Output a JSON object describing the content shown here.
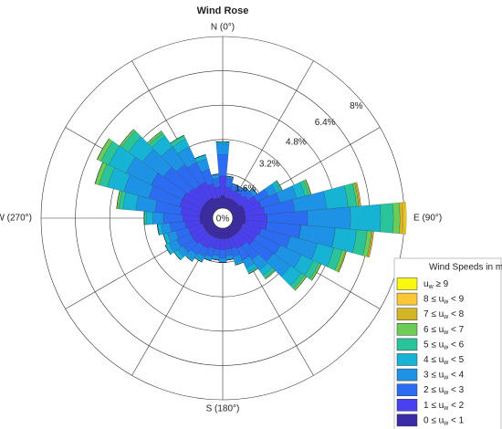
{
  "chart_data": {
    "type": "windrose",
    "title": "Wind Rose",
    "directions": [
      0,
      10,
      20,
      30,
      40,
      50,
      60,
      70,
      80,
      90,
      100,
      110,
      120,
      130,
      140,
      150,
      160,
      170,
      180,
      190,
      200,
      210,
      220,
      230,
      240,
      250,
      260,
      270,
      280,
      290,
      300,
      310,
      320,
      330,
      340,
      350
    ],
    "rlim": [
      0,
      8
    ],
    "rticks": [
      {
        "value": 0,
        "label": "0%"
      },
      {
        "value": 1.6,
        "label": "1.6%"
      },
      {
        "value": 3.2,
        "label": "3.2%"
      },
      {
        "value": 4.8,
        "label": "4.8%"
      },
      {
        "value": 6.4,
        "label": "6.4%"
      },
      {
        "value": 8,
        "label": "8%"
      }
    ],
    "thetaticks": [
      0,
      30,
      60,
      90,
      120,
      150,
      180,
      210,
      240,
      270,
      300,
      330
    ],
    "direction_labels": [
      {
        "value": 0,
        "label": "N (0°)"
      },
      {
        "value": 90,
        "label": "E (90°)"
      },
      {
        "value": 180,
        "label": "S (180°)"
      },
      {
        "value": 270,
        "label": "W (270°)"
      }
    ],
    "legend_title": "Wind Speeds in m/s",
    "legend_position": "lower right",
    "series": [
      {
        "name": "0 ≤ uw < 1",
        "color": "#3b2aa6",
        "values": [
          0.6,
          0.5,
          0.5,
          0.5,
          0.5,
          0.5,
          0.6,
          0.6,
          0.6,
          0.6,
          0.6,
          0.5,
          0.5,
          0.5,
          0.5,
          0.5,
          0.5,
          0.5,
          0.5,
          0.5,
          0.5,
          0.5,
          0.5,
          0.5,
          0.5,
          0.5,
          0.6,
          0.6,
          0.6,
          0.6,
          0.6,
          0.6,
          0.6,
          0.6,
          0.5,
          0.5
        ]
      },
      {
        "name": "1 ≤ uw < 2",
        "color": "#4a40f0",
        "values": [
          0.9,
          0.5,
          0.4,
          0.4,
          0.4,
          0.5,
          0.7,
          0.8,
          0.9,
          1.0,
          1.0,
          0.9,
          0.8,
          0.8,
          0.6,
          0.6,
          0.5,
          0.5,
          0.5,
          0.5,
          0.5,
          0.6,
          0.6,
          0.7,
          0.7,
          0.7,
          0.7,
          0.8,
          0.9,
          1.0,
          1.0,
          0.9,
          0.8,
          0.8,
          0.7,
          0.5
        ]
      },
      {
        "name": "2 ≤ uw < 3",
        "color": "#2b6cf2",
        "values": [
          1.0,
          0.4,
          0.2,
          0.2,
          0.3,
          0.3,
          0.6,
          0.9,
          1.4,
          1.9,
          1.6,
          1.4,
          1.2,
          1.1,
          0.8,
          0.6,
          0.4,
          0.3,
          0.4,
          0.3,
          0.4,
          0.4,
          0.5,
          0.6,
          0.7,
          0.6,
          0.7,
          0.9,
          1.2,
          1.5,
          1.6,
          1.4,
          1.2,
          1.0,
          0.7,
          0.4
        ]
      },
      {
        "name": "3 ≤ uw < 4",
        "color": "#1e93e6",
        "values": [
          0.5,
          0.1,
          0.1,
          0.1,
          0.1,
          0.2,
          0.4,
          0.8,
          1.5,
          2.0,
          1.6,
          1.3,
          1.1,
          1.0,
          0.6,
          0.4,
          0.3,
          0.2,
          0.2,
          0.2,
          0.2,
          0.2,
          0.3,
          0.3,
          0.4,
          0.4,
          0.4,
          0.5,
          0.9,
          1.2,
          1.3,
          1.2,
          1.0,
          0.8,
          0.5,
          0.2
        ]
      },
      {
        "name": "4 ≤ uw < 5",
        "color": "#17b3d4",
        "values": [
          0.1,
          0,
          0,
          0,
          0,
          0,
          0.2,
          0.4,
          1.0,
          1.4,
          1.0,
          0.8,
          0.6,
          0.6,
          0.3,
          0.2,
          0.1,
          0,
          0,
          0,
          0,
          0.1,
          0.1,
          0.2,
          0.2,
          0.2,
          0.2,
          0.3,
          0.6,
          0.8,
          0.9,
          0.8,
          0.6,
          0.4,
          0.2,
          0
        ]
      },
      {
        "name": "5 ≤ uw < 6",
        "color": "#2bc49a",
        "values": [
          0,
          0,
          0,
          0,
          0,
          0,
          0.1,
          0.2,
          0.4,
          0.6,
          0.5,
          0.4,
          0.3,
          0.2,
          0.15,
          0.1,
          0,
          0,
          0,
          0,
          0,
          0,
          0,
          0,
          0,
          0,
          0,
          0.1,
          0.2,
          0.4,
          0.4,
          0.4,
          0.2,
          0.2,
          0,
          0
        ]
      },
      {
        "name": "6 ≤ uw < 7",
        "color": "#6dcc55",
        "values": [
          0,
          0,
          0,
          0,
          0,
          0,
          0,
          0.1,
          0.1,
          0.3,
          0.2,
          0.15,
          0.1,
          0.1,
          0.05,
          0,
          0,
          0,
          0,
          0,
          0,
          0,
          0,
          0,
          0,
          0,
          0,
          0,
          0.1,
          0.2,
          0.2,
          0.1,
          0.1,
          0,
          0,
          0
        ]
      },
      {
        "name": "7 ≤ uw < 8",
        "color": "#d4b526",
        "values": [
          0,
          0,
          0,
          0,
          0,
          0,
          0,
          0,
          0.05,
          0.15,
          0.05,
          0.05,
          0,
          0,
          0,
          0,
          0,
          0,
          0,
          0,
          0,
          0,
          0,
          0,
          0,
          0,
          0,
          0,
          0,
          0,
          0,
          0,
          0,
          0,
          0,
          0
        ]
      },
      {
        "name": "8 ≤ uw < 9",
        "color": "#fcc736",
        "values": [
          0,
          0,
          0,
          0,
          0,
          0,
          0,
          0,
          0.05,
          0.1,
          0.05,
          0,
          0,
          0,
          0,
          0,
          0,
          0,
          0,
          0,
          0,
          0,
          0,
          0,
          0,
          0,
          0,
          0,
          0,
          0,
          0,
          0,
          0,
          0,
          0,
          0
        ]
      },
      {
        "name": "uw ≥ 9",
        "color": "#f9f90f",
        "values": [
          0,
          0,
          0,
          0,
          0,
          0,
          0,
          0,
          0,
          0.05,
          0,
          0,
          0,
          0,
          0,
          0,
          0,
          0,
          0,
          0,
          0,
          0,
          0,
          0,
          0,
          0,
          0,
          0,
          0,
          0,
          0,
          0,
          0,
          0,
          0,
          0
        ]
      }
    ]
  }
}
